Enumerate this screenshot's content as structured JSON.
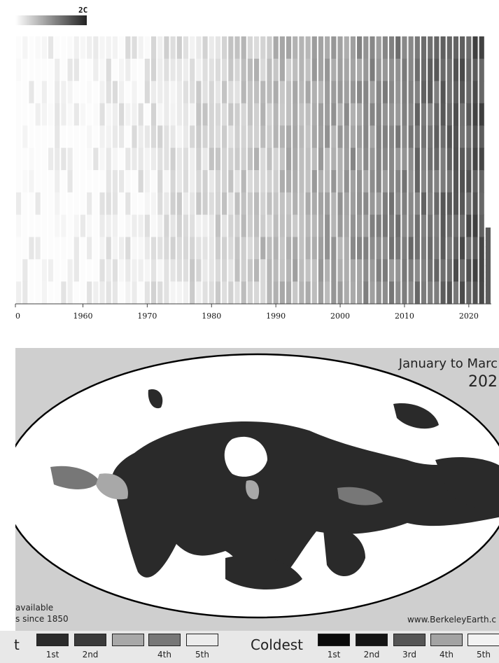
{
  "chart_data": [
    {
      "type": "heatmap",
      "title": "",
      "xlabel": "",
      "ylabel": "",
      "x_tick_labels": [
        "0",
        "1960",
        "1970",
        "1980",
        "1990",
        "2000",
        "2010",
        "2020"
      ],
      "x_tick_years": [
        1950,
        1960,
        1970,
        1980,
        1990,
        2000,
        2010,
        2020
      ],
      "years": [
        1950,
        2023
      ],
      "colorbar": {
        "max_label": "2C",
        "colors": [
          "#ffffff",
          "#222222"
        ]
      },
      "grid": false,
      "trend": "anomalies grow darker toward recent years; 2023 partial year shown as shorter column"
    },
    {
      "type": "heatmap",
      "title_line1": "January to Marc",
      "title_line2": "202",
      "note_line1": "available",
      "note_line2": "s since 1850",
      "credit": "www.BerkeleyEarth.c",
      "legend": {
        "warmest_head": "t",
        "coldest_head": "Coldest",
        "ranks": [
          "1st",
          "2nd",
          "3rd",
          "4th",
          "5th"
        ],
        "warm_colors": [
          "#2b2b2b",
          "#3a3a3a",
          "#777777",
          "#a8a8a8",
          "#ececec"
        ],
        "cold_colors": [
          "#0a0a0a",
          "#141414",
          "#555555",
          "#a3a3a3",
          "#f2f2f2"
        ],
        "visible_warm_ranks": [
          "1st",
          "2nd",
          "4th",
          "5th"
        ]
      }
    }
  ]
}
